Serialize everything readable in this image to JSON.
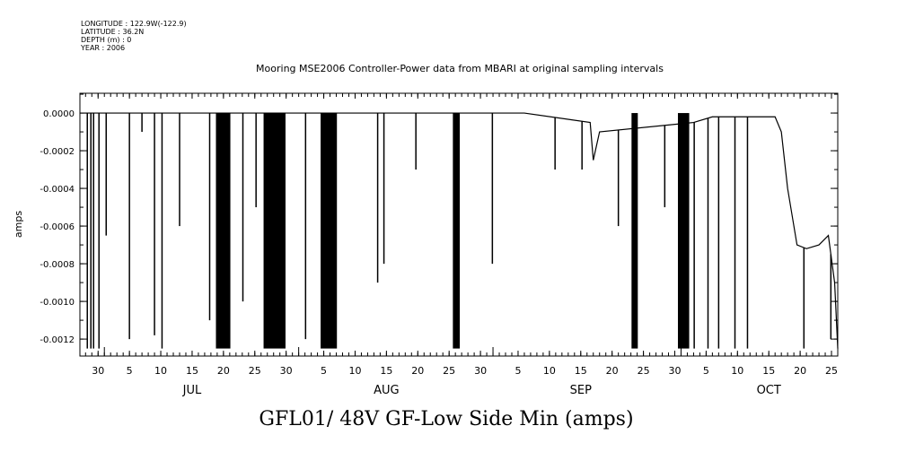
{
  "header": {
    "longitude": "LONGITUDE : 122.9W(-122.9)",
    "latitude": "LATITUDE : 36.2N",
    "depth": "DEPTH (m) : 0",
    "year": "YEAR : 2006"
  },
  "chart_data": {
    "type": "line",
    "title": "Mooring MSE2006 Controller-Power data from MBARI at original sampling intervals",
    "xlabel": "GFL01/ 48V GF-Low Side Min (amps)",
    "ylabel": "amps",
    "x_units": "days since 2006-06-30",
    "xlim": [
      -2.9,
      118.0
    ],
    "ylim": [
      -0.00129,
      0.000105
    ],
    "yticks": [
      0,
      -0.0002,
      -0.0004,
      -0.0006,
      -0.0008,
      -0.001,
      -0.0012
    ],
    "ytick_labels": [
      "0.0000",
      "-0.0002",
      "-0.0004",
      "-0.0006",
      "-0.0008",
      "-0.0010",
      "-0.0012"
    ],
    "xtick_days": [
      0,
      5,
      10,
      15,
      20,
      25,
      30,
      36,
      41,
      46,
      51,
      56,
      61,
      67,
      72,
      77,
      82,
      87,
      92,
      97,
      102,
      107,
      112,
      117
    ],
    "xtick_labels": [
      "30",
      "5",
      "10",
      "15",
      "20",
      "25",
      "30",
      "5",
      "10",
      "15",
      "20",
      "25",
      "30",
      "5",
      "10",
      "15",
      "20",
      "25",
      "30",
      "5",
      "10",
      "15",
      "20",
      "25"
    ],
    "months": [
      {
        "label": "JUL",
        "day": 15
      },
      {
        "label": "AUG",
        "day": 46
      },
      {
        "label": "SEP",
        "day": 77
      },
      {
        "label": "OCT",
        "day": 107
      }
    ],
    "month_boundaries": [
      1,
      32,
      63,
      93
    ],
    "baseline": [
      [
        -2.9,
        0
      ],
      [
        68,
        0
      ],
      [
        78.5,
        -5e-05
      ],
      [
        79,
        -0.00025
      ],
      [
        80,
        -0.0001
      ],
      [
        95,
        -5e-05
      ],
      [
        98,
        -2e-05
      ],
      [
        108,
        -2e-05
      ],
      [
        109,
        -0.0001
      ],
      [
        110,
        -0.0004
      ],
      [
        111,
        -0.0006
      ],
      [
        111.5,
        -0.0007
      ],
      [
        113,
        -0.00072
      ],
      [
        115,
        -0.0007
      ],
      [
        116.5,
        -0.00065
      ],
      [
        117.5,
        -0.0009
      ],
      [
        118,
        -0.00125
      ]
    ],
    "spikes": [
      [
        -1.72,
        -0.00125
      ],
      [
        -1.15,
        -0.00125
      ],
      [
        -0.72,
        -0.00125
      ],
      [
        0.14,
        -0.00125
      ],
      [
        1.29,
        -0.00065
      ],
      [
        5.0,
        -0.0012
      ],
      [
        7.0,
        -0.0001
      ],
      [
        9.0,
        -0.00118
      ],
      [
        10.2,
        -0.00125
      ],
      [
        13.0,
        -0.0006
      ],
      [
        17.8,
        -0.0011
      ],
      [
        23.1,
        -0.001
      ],
      [
        25.2,
        -0.0005
      ],
      [
        33.1,
        -0.0012
      ],
      [
        44.6,
        -0.0009
      ],
      [
        45.6,
        -0.0008
      ],
      [
        50.7,
        -0.0003
      ],
      [
        62.9,
        -0.0008
      ],
      [
        72.9,
        -0.0003
      ],
      [
        77.2,
        -0.0003
      ],
      [
        83,
        -0.0006
      ],
      [
        90.4,
        -0.0005
      ],
      [
        95.1,
        -0.00125
      ],
      [
        97.3,
        -0.00125
      ],
      [
        99,
        -0.00125
      ],
      [
        101.6,
        -0.00125
      ],
      [
        103.6,
        -0.00125
      ],
      [
        112.6,
        -0.00125
      ],
      [
        116.9,
        -0.0012
      ]
    ],
    "bands": [
      [
        18.8,
        21.1,
        -0.00125
      ],
      [
        26.4,
        29.9,
        -0.00125
      ],
      [
        35.5,
        38.1,
        -0.00125
      ],
      [
        56.6,
        57.7,
        -0.00125
      ],
      [
        85.1,
        86.1,
        -0.00125
      ],
      [
        92.5,
        94.3,
        -0.00125
      ]
    ],
    "grid": false
  }
}
